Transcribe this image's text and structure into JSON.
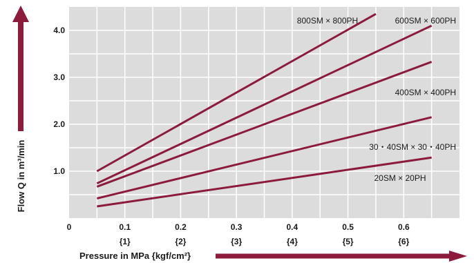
{
  "chart_data": {
    "type": "line",
    "xlabel": "Pressure in MPa {kgf/cm²}",
    "ylabel": "Flow Q in m³/min",
    "xlim": [
      0,
      0.7
    ],
    "ylim": [
      0,
      4.5
    ],
    "x_ticks": [
      {
        "value": 0,
        "label": "0",
        "sub": ""
      },
      {
        "value": 0.1,
        "label": "0.1",
        "sub": "{1}"
      },
      {
        "value": 0.2,
        "label": "0.2",
        "sub": "{2}"
      },
      {
        "value": 0.3,
        "label": "0.3",
        "sub": "{3}"
      },
      {
        "value": 0.4,
        "label": "0.4",
        "sub": "{4}"
      },
      {
        "value": 0.5,
        "label": "0.5",
        "sub": "{5}"
      },
      {
        "value": 0.6,
        "label": "0.6",
        "sub": "{6}"
      }
    ],
    "y_ticks": [
      {
        "value": 1.0,
        "label": "1.0"
      },
      {
        "value": 2.0,
        "label": "2.0"
      },
      {
        "value": 3.0,
        "label": "3.0"
      },
      {
        "value": 4.0,
        "label": "4.0"
      }
    ],
    "grid": true,
    "line_color": "#8c1a3c",
    "plot_bg": "#dcdcdc",
    "series": [
      {
        "name": "800SM × 800PH",
        "x": [
          0.05,
          0.55
        ],
        "y": [
          1.0,
          4.35
        ]
      },
      {
        "name": "600SM × 600PH",
        "x": [
          0.05,
          0.65
        ],
        "y": [
          0.74,
          4.1
        ]
      },
      {
        "name": "400SM × 400PH",
        "x": [
          0.05,
          0.65
        ],
        "y": [
          0.67,
          3.33
        ]
      },
      {
        "name": "30・40SM × 30・40PH",
        "x": [
          0.05,
          0.65
        ],
        "y": [
          0.42,
          2.15
        ]
      },
      {
        "name": "20SM × 20PH",
        "x": [
          0.05,
          0.65
        ],
        "y": [
          0.25,
          1.29
        ]
      }
    ]
  }
}
